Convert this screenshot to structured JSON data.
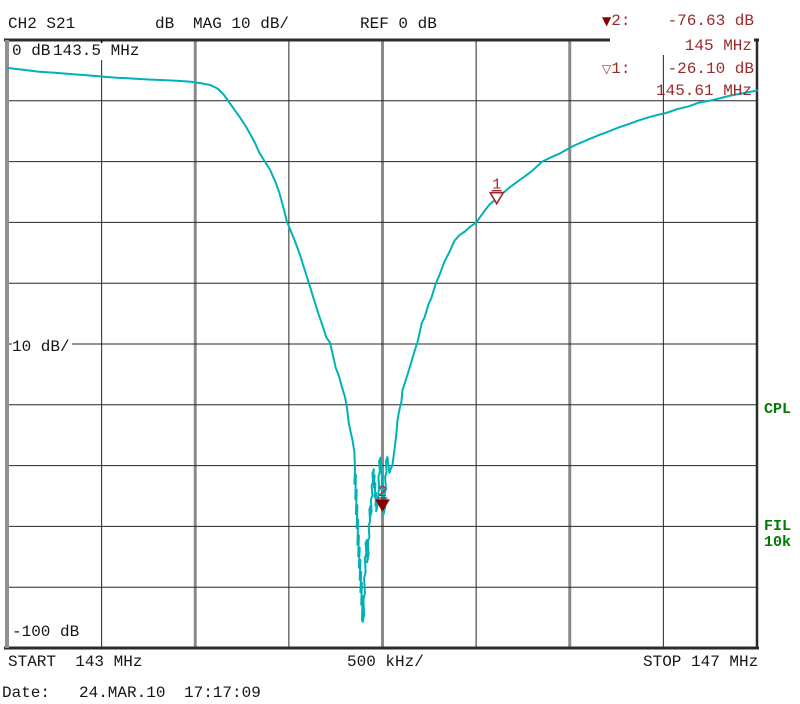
{
  "header": {
    "channel": "CH2 S21",
    "format": "dB",
    "scale": "MAG 10 dB/",
    "ref": "REF 0 dB"
  },
  "marker_readout": [
    {
      "symbol": "▼",
      "label": "2:",
      "value": "-76.63 dB",
      "freq": "145 MHz"
    },
    {
      "symbol": "▽",
      "label": "1:",
      "value": "-26.10 dB",
      "freq": "145.61 MHz"
    }
  ],
  "plot_labels": {
    "ref_level": "0 dB",
    "ref_freq": "143.5 MHz",
    "scale_per_div": "10 dB/",
    "bottom_level": "-100 dB"
  },
  "side_labels": {
    "cpl": "CPL",
    "fil": "FIL",
    "fil_bw": "10k"
  },
  "footer": {
    "start": "START  143 MHz",
    "per_div": "500 kHz/",
    "stop": "STOP 147 MHz",
    "date_label": "Date:",
    "date": "24.MAR.10",
    "time": "17:17:09"
  },
  "colors": {
    "trace": "#00b2b8",
    "marker_red": "#9b2a2a",
    "marker_fill": "#8b0000",
    "green": "#007a00",
    "grid_thin": "#262626",
    "grid_thick": "#8a8a8a",
    "border_dark": "#2b2b2b",
    "border_left": "#909090"
  },
  "chart_data": {
    "type": "line",
    "title": "CH2 S21 dB MAG 10 dB/ REF 0 dB",
    "xlabel": "Frequency, START 143 MHz to STOP 147 MHz, 500 kHz/div",
    "ylabel": "Magnitude, 0 dB to -100 dB, 10 dB/div",
    "x_range_mhz": [
      143,
      147
    ],
    "y_range_db": [
      -100,
      0
    ],
    "x_divisions": 8,
    "y_divisions": 10,
    "grid": true,
    "ref_tick_mhz": 143.5,
    "markers": [
      {
        "id": 2,
        "freq_mhz": 145.0,
        "level_db": -76.63,
        "style": "filled"
      },
      {
        "id": 1,
        "freq_mhz": 145.61,
        "level_db": -26.1,
        "style": "hollow"
      }
    ],
    "series": [
      {
        "name": "S21",
        "points": [
          [
            143.0,
            -4.6
          ],
          [
            143.08,
            -4.9
          ],
          [
            143.16,
            -5.2
          ],
          [
            143.25,
            -5.4
          ],
          [
            143.33,
            -5.6
          ],
          [
            143.42,
            -5.8
          ],
          [
            143.5,
            -6.0
          ],
          [
            143.58,
            -6.2
          ],
          [
            143.67,
            -6.35
          ],
          [
            143.75,
            -6.5
          ],
          [
            143.83,
            -6.6
          ],
          [
            143.9,
            -6.7
          ],
          [
            143.97,
            -6.85
          ],
          [
            144.03,
            -7.1
          ],
          [
            144.08,
            -7.4
          ],
          [
            144.12,
            -8.0
          ],
          [
            144.15,
            -8.9
          ],
          [
            144.18,
            -10.2
          ],
          [
            144.21,
            -11.5
          ],
          [
            144.24,
            -12.8
          ],
          [
            144.27,
            -14.2
          ],
          [
            144.29,
            -15.3
          ],
          [
            144.32,
            -17.0
          ],
          [
            144.34,
            -18.4
          ],
          [
            144.37,
            -19.9
          ],
          [
            144.4,
            -21.4
          ],
          [
            144.43,
            -23.5
          ],
          [
            144.45,
            -25.2
          ],
          [
            144.47,
            -27.5
          ],
          [
            144.49,
            -29.9
          ],
          [
            144.51,
            -31.4
          ],
          [
            144.53,
            -32.9
          ],
          [
            144.56,
            -35.4
          ],
          [
            144.58,
            -37.4
          ],
          [
            144.61,
            -40.3
          ],
          [
            144.63,
            -42.3
          ],
          [
            144.66,
            -45.2
          ],
          [
            144.68,
            -47.0
          ],
          [
            144.7,
            -48.9
          ],
          [
            144.72,
            -49.8
          ],
          [
            144.74,
            -52.5
          ],
          [
            144.75,
            -53.9
          ],
          [
            144.77,
            -55.5
          ],
          [
            144.78,
            -56.7
          ],
          [
            144.8,
            -58.8
          ],
          [
            144.81,
            -60.4
          ],
          [
            144.82,
            -63.0
          ],
          [
            144.83,
            -64.5
          ],
          [
            144.84,
            -65.8
          ],
          [
            144.85,
            -67.8
          ],
          [
            144.853,
            -70.4
          ],
          [
            144.85,
            -73.0
          ],
          [
            144.858,
            -71.5
          ],
          [
            144.855,
            -75.5
          ],
          [
            144.862,
            -74.0
          ],
          [
            144.858,
            -78.0
          ],
          [
            144.866,
            -76.5
          ],
          [
            144.862,
            -80.3
          ],
          [
            144.87,
            -78.9
          ],
          [
            144.866,
            -83.0
          ],
          [
            144.874,
            -81.5
          ],
          [
            144.87,
            -84.9
          ],
          [
            144.878,
            -83.5
          ],
          [
            144.874,
            -86.8
          ],
          [
            144.882,
            -85.5
          ],
          [
            144.878,
            -88.8
          ],
          [
            144.886,
            -87.5
          ],
          [
            144.882,
            -90.8
          ],
          [
            144.89,
            -89.3
          ],
          [
            144.886,
            -92.9
          ],
          [
            144.894,
            -91.5
          ],
          [
            144.89,
            -95.4
          ],
          [
            144.898,
            -94.0
          ],
          [
            144.894,
            -95.7
          ],
          [
            144.902,
            -94.5
          ],
          [
            144.898,
            -92.0
          ],
          [
            144.906,
            -91.0
          ],
          [
            144.902,
            -88.5
          ],
          [
            144.91,
            -87.5
          ],
          [
            144.906,
            -85.2
          ],
          [
            144.914,
            -84.4
          ],
          [
            144.91,
            -82.7
          ],
          [
            144.918,
            -82.2
          ],
          [
            144.914,
            -84.9
          ],
          [
            144.922,
            -83.8
          ],
          [
            144.918,
            -85.9
          ],
          [
            144.926,
            -84.6
          ],
          [
            144.922,
            -82.5
          ],
          [
            144.93,
            -81.8
          ],
          [
            144.926,
            -79.9
          ],
          [
            144.934,
            -79.2
          ],
          [
            144.93,
            -77.2
          ],
          [
            144.938,
            -76.5
          ],
          [
            144.934,
            -78.5
          ],
          [
            144.942,
            -77.5
          ],
          [
            144.938,
            -75.6
          ],
          [
            144.946,
            -74.9
          ],
          [
            144.942,
            -73.3
          ],
          [
            144.95,
            -72.6
          ],
          [
            144.946,
            -71.3
          ],
          [
            144.954,
            -70.6
          ],
          [
            144.95,
            -72.3
          ],
          [
            144.958,
            -71.6
          ],
          [
            144.954,
            -73.6
          ],
          [
            144.962,
            -72.9
          ],
          [
            144.958,
            -75.2
          ],
          [
            144.966,
            -74.5
          ],
          [
            144.962,
            -76.6
          ],
          [
            144.97,
            -75.6
          ],
          [
            144.966,
            -77.5
          ],
          [
            144.974,
            -76.5
          ],
          [
            144.978,
            -74.6
          ],
          [
            144.982,
            -73.6
          ],
          [
            144.978,
            -71.9
          ],
          [
            144.986,
            -71.0
          ],
          [
            144.982,
            -69.3
          ],
          [
            144.99,
            -68.7
          ],
          [
            144.994,
            -70.0
          ],
          [
            144.998,
            -72.0
          ],
          [
            144.994,
            -74.0
          ],
          [
            145.002,
            -73.0
          ],
          [
            144.998,
            -76.0
          ],
          [
            145.006,
            -74.8
          ],
          [
            145.002,
            -77.2
          ],
          [
            145.01,
            -76.2
          ],
          [
            145.006,
            -78.0
          ],
          [
            145.014,
            -76.8
          ],
          [
            145.01,
            -74.8
          ],
          [
            145.018,
            -73.8
          ],
          [
            145.014,
            -71.9
          ],
          [
            145.022,
            -71.0
          ],
          [
            145.018,
            -69.3
          ],
          [
            145.026,
            -68.6
          ],
          [
            145.032,
            -70.0
          ],
          [
            145.037,
            -71.2
          ],
          [
            145.045,
            -70.5
          ],
          [
            145.053,
            -69.9
          ],
          [
            145.064,
            -67.4
          ],
          [
            145.075,
            -64.6
          ],
          [
            145.08,
            -62.5
          ],
          [
            145.09,
            -60.8
          ],
          [
            145.101,
            -59.5
          ],
          [
            145.107,
            -57.6
          ],
          [
            145.12,
            -56.3
          ],
          [
            145.133,
            -55.1
          ],
          [
            145.147,
            -53.7
          ],
          [
            145.16,
            -52.3
          ],
          [
            145.173,
            -51.0
          ],
          [
            145.187,
            -49.7
          ],
          [
            145.21,
            -46.5
          ],
          [
            145.224,
            -45.7
          ],
          [
            145.245,
            -43.5
          ],
          [
            145.261,
            -42.4
          ],
          [
            145.285,
            -40.0
          ],
          [
            145.304,
            -38.7
          ],
          [
            145.33,
            -36.5
          ],
          [
            145.357,
            -34.9
          ],
          [
            145.385,
            -33.0
          ],
          [
            145.411,
            -32.1
          ],
          [
            145.44,
            -31.5
          ],
          [
            145.464,
            -30.8
          ],
          [
            145.501,
            -30.0
          ],
          [
            145.54,
            -28.3
          ],
          [
            145.57,
            -27.1
          ],
          [
            145.608,
            -26.1
          ],
          [
            145.65,
            -25.0
          ],
          [
            145.677,
            -24.3
          ],
          [
            145.72,
            -23.3
          ],
          [
            145.757,
            -22.5
          ],
          [
            145.8,
            -21.5
          ],
          [
            145.853,
            -20.0
          ],
          [
            145.9,
            -19.3
          ],
          [
            145.944,
            -18.7
          ],
          [
            146.008,
            -17.6
          ],
          [
            146.05,
            -17.0
          ],
          [
            146.104,
            -16.3
          ],
          [
            146.16,
            -15.6
          ],
          [
            146.211,
            -15.0
          ],
          [
            146.26,
            -14.4
          ],
          [
            146.317,
            -13.8
          ],
          [
            146.37,
            -13.2
          ],
          [
            146.424,
            -12.7
          ],
          [
            146.47,
            -12.3
          ],
          [
            146.515,
            -12.0
          ],
          [
            146.57,
            -11.4
          ],
          [
            146.637,
            -10.9
          ],
          [
            146.69,
            -10.3
          ],
          [
            146.744,
            -10.0
          ],
          [
            146.8,
            -9.6
          ],
          [
            146.851,
            -9.2
          ],
          [
            146.9,
            -8.9
          ],
          [
            146.95,
            -8.6
          ],
          [
            147.0,
            -8.3
          ]
        ]
      }
    ]
  }
}
